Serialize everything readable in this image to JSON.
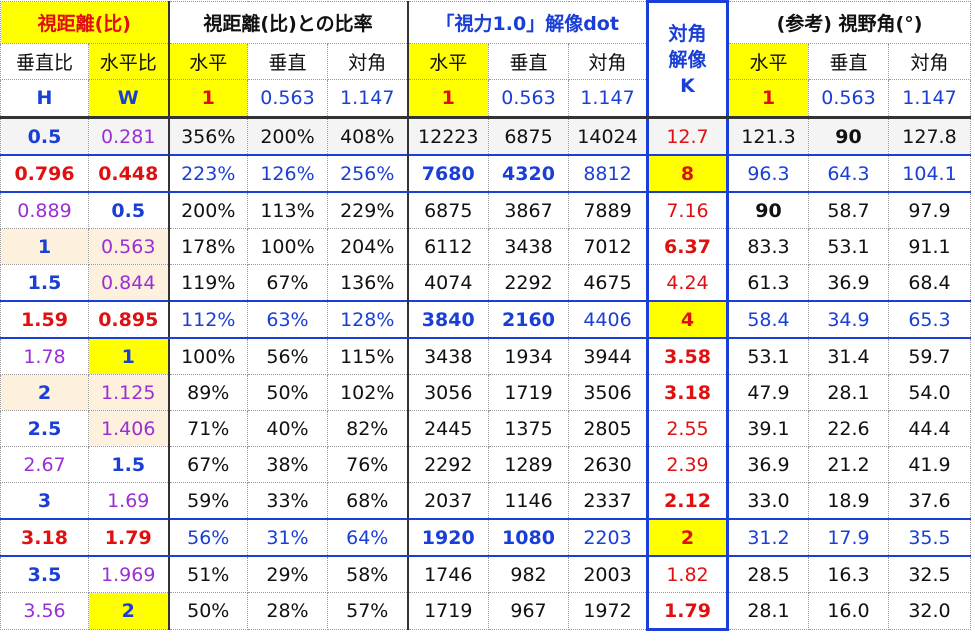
{
  "header": {
    "groups": [
      "視距離(比)",
      "視距離(比)との比率",
      "「視力1.0」解像dot",
      "(参考) 視野角(°)"
    ],
    "k_header": [
      "対角",
      "解像",
      "K"
    ],
    "row2": [
      "垂直比",
      "水平比",
      "水平",
      "垂直",
      "対角",
      "水平",
      "垂直",
      "対角",
      "水平",
      "垂直",
      "対角"
    ],
    "row3": [
      "H",
      "W",
      "1",
      "0.563",
      "1.147",
      "1",
      "0.563",
      "1.147",
      "1",
      "0.563",
      "1.147"
    ]
  },
  "rows": [
    [
      "0.5",
      "0.281",
      "356%",
      "200%",
      "408%",
      "12223",
      "6875",
      "14024",
      "12.7",
      "121.3",
      "90",
      "127.8"
    ],
    [
      "0.796",
      "0.448",
      "223%",
      "126%",
      "256%",
      "7680",
      "4320",
      "8812",
      "8",
      "96.3",
      "64.3",
      "104.1"
    ],
    [
      "0.889",
      "0.5",
      "200%",
      "113%",
      "229%",
      "6875",
      "3867",
      "7889",
      "7.16",
      "90",
      "58.7",
      "97.9"
    ],
    [
      "1",
      "0.563",
      "178%",
      "100%",
      "204%",
      "6112",
      "3438",
      "7012",
      "6.37",
      "83.3",
      "53.1",
      "91.1"
    ],
    [
      "1.5",
      "0.844",
      "119%",
      "67%",
      "136%",
      "4074",
      "2292",
      "4675",
      "4.24",
      "61.3",
      "36.9",
      "68.4"
    ],
    [
      "1.59",
      "0.895",
      "112%",
      "63%",
      "128%",
      "3840",
      "2160",
      "4406",
      "4",
      "58.4",
      "34.9",
      "65.3"
    ],
    [
      "1.78",
      "1",
      "100%",
      "56%",
      "115%",
      "3438",
      "1934",
      "3944",
      "3.58",
      "53.1",
      "31.4",
      "59.7"
    ],
    [
      "2",
      "1.125",
      "89%",
      "50%",
      "102%",
      "3056",
      "1719",
      "3506",
      "3.18",
      "47.9",
      "28.1",
      "54.0"
    ],
    [
      "2.5",
      "1.406",
      "71%",
      "40%",
      "82%",
      "2445",
      "1375",
      "2805",
      "2.55",
      "39.1",
      "22.6",
      "44.4"
    ],
    [
      "2.67",
      "1.5",
      "67%",
      "38%",
      "76%",
      "2292",
      "1289",
      "2630",
      "2.39",
      "36.9",
      "21.2",
      "41.9"
    ],
    [
      "3",
      "1.69",
      "59%",
      "33%",
      "68%",
      "2037",
      "1146",
      "2337",
      "2.12",
      "33.0",
      "18.9",
      "37.6"
    ],
    [
      "3.18",
      "1.79",
      "56%",
      "31%",
      "64%",
      "1920",
      "1080",
      "2203",
      "2",
      "31.2",
      "17.9",
      "35.5"
    ],
    [
      "3.5",
      "1.969",
      "51%",
      "29%",
      "58%",
      "1746",
      "982",
      "2003",
      "1.82",
      "28.5",
      "16.3",
      "32.5"
    ],
    [
      "3.56",
      "2",
      "50%",
      "28%",
      "57%",
      "1719",
      "967",
      "1972",
      "1.79",
      "28.1",
      "16.0",
      "32.0"
    ]
  ]
}
